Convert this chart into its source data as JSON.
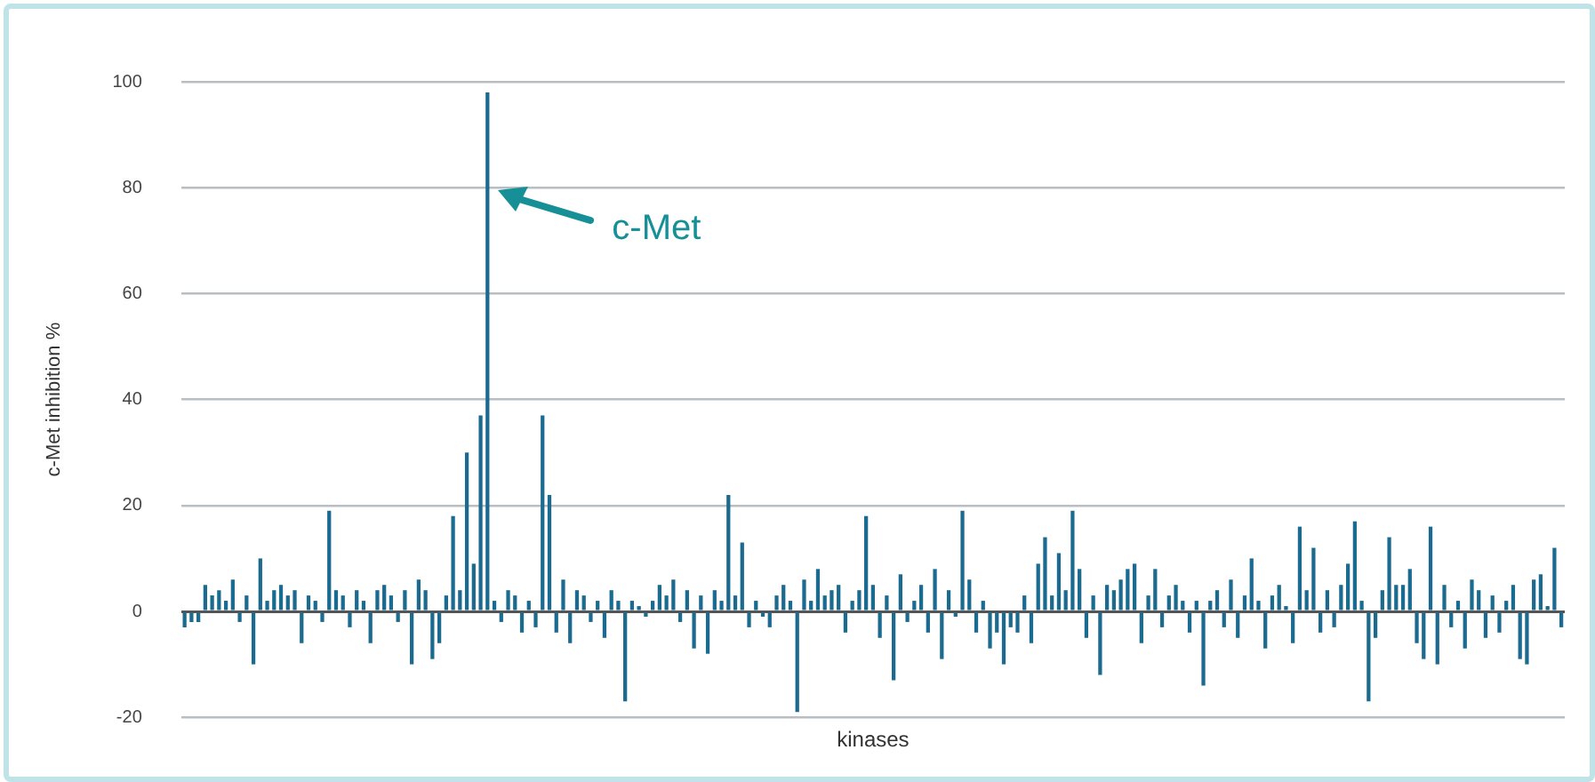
{
  "chart_data": {
    "type": "bar",
    "xlabel": "kinases",
    "ylabel": "c-Met inhibition %",
    "color": "#1b6a90",
    "ylim": [
      -20,
      100
    ],
    "yticks": [
      -20,
      0,
      20,
      40,
      60,
      80,
      100
    ],
    "grid": "y",
    "legend": false,
    "annotations": [
      "c-Met"
    ],
    "categories": [
      null,
      null,
      null,
      null,
      null,
      null,
      null,
      null,
      null,
      null,
      null,
      null,
      null,
      null,
      null,
      null,
      null,
      null,
      null,
      null,
      null,
      null,
      null,
      null,
      null,
      null,
      null,
      null,
      null,
      null,
      null,
      null,
      null,
      null,
      null,
      null,
      null,
      null,
      null,
      null,
      null,
      null,
      null,
      null,
      null,
      null,
      null,
      null,
      null,
      null,
      null,
      null,
      null,
      null,
      null,
      null,
      null,
      null,
      null,
      null,
      null,
      null,
      null,
      null,
      null,
      null,
      null,
      null,
      null,
      null,
      null,
      null,
      null,
      null,
      null,
      null,
      null,
      null,
      null,
      null,
      null,
      null,
      null,
      null,
      null,
      null,
      null,
      null,
      null,
      null,
      null,
      null,
      null,
      null,
      null,
      null,
      null,
      null,
      null,
      null,
      null,
      null,
      null,
      null,
      null,
      null,
      null,
      null,
      null,
      null,
      null,
      null,
      null,
      null,
      null,
      null,
      null,
      null,
      null,
      null,
      null,
      null,
      null,
      null,
      null,
      null,
      null,
      null,
      null,
      null,
      null,
      null,
      null,
      null,
      null,
      null,
      null,
      null,
      null,
      null,
      null,
      null,
      null,
      null,
      null,
      null,
      null,
      null,
      null,
      null,
      null,
      null,
      null,
      null,
      null,
      null,
      null,
      null,
      null,
      null,
      null,
      null,
      null,
      null,
      null,
      null,
      null,
      null,
      null,
      null,
      null,
      null,
      null,
      null,
      null,
      null,
      null,
      null,
      null,
      null,
      null,
      null,
      null,
      null,
      null,
      null,
      null,
      null,
      null,
      null,
      null,
      null,
      null,
      null,
      null,
      null,
      null,
      null,
      null,
      null,
      null
    ],
    "values": [
      -3,
      -2,
      -2,
      5,
      3,
      4,
      2,
      6,
      -2,
      3,
      -10,
      10,
      2,
      4,
      5,
      3,
      4,
      -6,
      3,
      2,
      -2,
      19,
      4,
      3,
      -3,
      4,
      2,
      -6,
      4,
      5,
      3,
      -2,
      4,
      -10,
      6,
      4,
      -9,
      -6,
      3,
      18,
      4,
      30,
      9,
      37,
      98,
      2,
      -2,
      4,
      3,
      -4,
      2,
      -3,
      37,
      22,
      -4,
      6,
      -6,
      4,
      3,
      -2,
      2,
      -5,
      4,
      2,
      -17,
      2,
      1,
      -1,
      2,
      5,
      3,
      6,
      -2,
      4,
      -7,
      3,
      -8,
      4,
      2,
      22,
      3,
      13,
      -3,
      2,
      -1,
      -3,
      3,
      5,
      2,
      -19,
      6,
      2,
      8,
      3,
      4,
      5,
      -4,
      2,
      4,
      18,
      5,
      -5,
      3,
      -13,
      7,
      -2,
      2,
      5,
      -4,
      8,
      -9,
      4,
      -1,
      19,
      6,
      -4,
      2,
      -7,
      -4,
      -10,
      -3,
      -4,
      3,
      -6,
      9,
      14,
      3,
      11,
      4,
      19,
      8,
      -5,
      3,
      -12,
      5,
      4,
      6,
      8,
      9,
      -6,
      3,
      8,
      -3,
      3,
      5,
      2,
      -4,
      2,
      -14,
      2,
      4,
      -3,
      6,
      -5,
      3,
      10,
      2,
      -7,
      3,
      5,
      1,
      -6,
      16,
      4,
      12,
      -4,
      4,
      -3,
      5,
      9,
      17,
      2,
      -17,
      -5,
      4,
      14,
      5,
      5,
      8,
      -6,
      -9,
      16,
      -10,
      5,
      -3,
      2,
      -7,
      6,
      4,
      -5,
      3,
      -4,
      2,
      5,
      -9,
      -10,
      6,
      7,
      1,
      12,
      -3
    ]
  }
}
